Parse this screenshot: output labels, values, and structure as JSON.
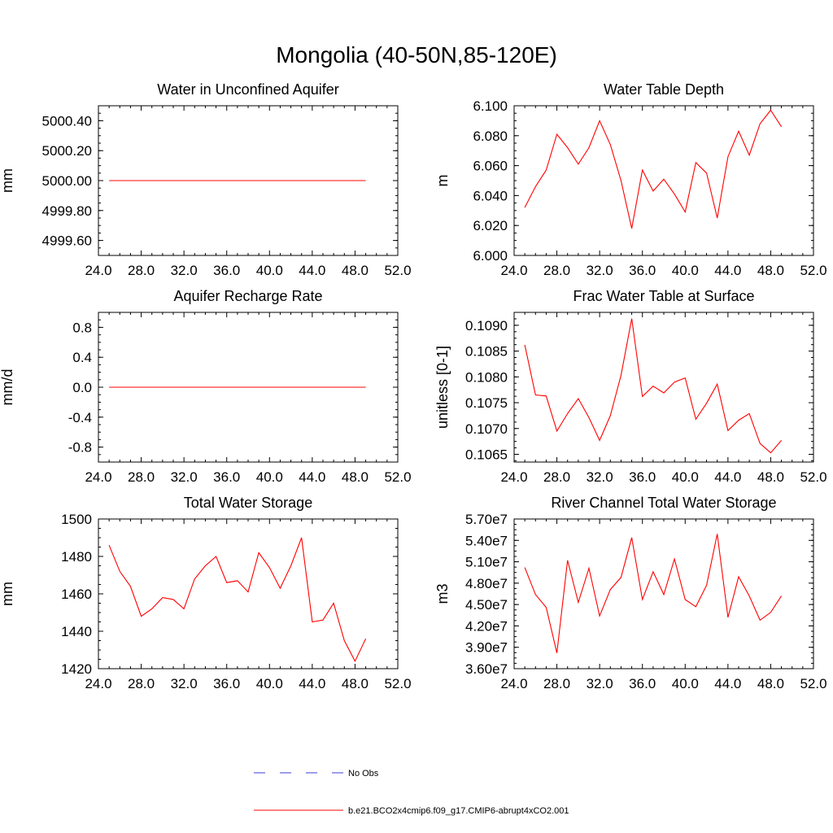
{
  "title": "Mongolia (40-50N,85-120E)",
  "legend": [
    {
      "label": "No Obs",
      "color": "#3b3bd4",
      "dash": true
    },
    {
      "label": "b.e21.BCO2x4cmip6.f09_g17.CMIP6-abrupt4xCO2.001",
      "color": "#ff0000",
      "dash": false
    }
  ],
  "colors": {
    "series": "#ff0000",
    "axis": "#000000"
  },
  "chart_data": [
    {
      "type": "line",
      "title": "Water in Unconfined Aquifer",
      "ylabel": "mm",
      "xlim": [
        24,
        52
      ],
      "ylim": [
        4999.5,
        5000.5
      ],
      "xticks": [
        "24.0",
        "28.0",
        "32.0",
        "36.0",
        "40.0",
        "44.0",
        "48.0",
        "52.0"
      ],
      "yticks": [
        4999.6,
        4999.8,
        5000.0,
        5000.2,
        5000.4
      ],
      "yticklabels": [
        "4999.60",
        "4999.80",
        "5000.00",
        "5000.20",
        "5000.40"
      ],
      "series": [
        {
          "x": [
            25,
            26,
            27,
            28,
            29,
            30,
            31,
            32,
            33,
            34,
            35,
            36,
            37,
            38,
            39,
            40,
            41,
            42,
            43,
            44,
            45,
            46,
            47,
            48,
            49
          ],
          "values": [
            5000,
            5000,
            5000,
            5000,
            5000,
            5000,
            5000,
            5000,
            5000,
            5000,
            5000,
            5000,
            5000,
            5000,
            5000,
            5000,
            5000,
            5000,
            5000,
            5000,
            5000,
            5000,
            5000,
            5000,
            5000
          ]
        }
      ]
    },
    {
      "type": "line",
      "title": "Water Table Depth",
      "ylabel": "m",
      "xlim": [
        24,
        52
      ],
      "ylim": [
        6.0,
        6.1
      ],
      "xticks": [
        "24.0",
        "28.0",
        "32.0",
        "36.0",
        "40.0",
        "44.0",
        "48.0",
        "52.0"
      ],
      "yticks": [
        6.0,
        6.02,
        6.04,
        6.06,
        6.08,
        6.1
      ],
      "yticklabels": [
        "6.000",
        "6.020",
        "6.040",
        "6.060",
        "6.080",
        "6.100"
      ],
      "series": [
        {
          "x": [
            25,
            26,
            27,
            28,
            29,
            30,
            31,
            32,
            33,
            34,
            35,
            36,
            37,
            38,
            39,
            40,
            41,
            42,
            43,
            44,
            45,
            46,
            47,
            48,
            49
          ],
          "values": [
            6.032,
            6.046,
            6.057,
            6.081,
            6.072,
            6.061,
            6.072,
            6.09,
            6.074,
            6.05,
            6.018,
            6.057,
            6.043,
            6.051,
            6.041,
            6.029,
            6.062,
            6.055,
            6.025,
            6.066,
            6.083,
            6.067,
            6.088,
            6.097,
            6.086
          ]
        }
      ]
    },
    {
      "type": "line",
      "title": "Aquifer Recharge Rate",
      "ylabel": "mm/d",
      "xlim": [
        24,
        52
      ],
      "ylim": [
        -1.0,
        1.0
      ],
      "xticks": [
        "24.0",
        "28.0",
        "32.0",
        "36.0",
        "40.0",
        "44.0",
        "48.0",
        "52.0"
      ],
      "yticks": [
        -0.8,
        -0.4,
        0.0,
        0.4,
        0.8
      ],
      "yticklabels": [
        "-0.8",
        "-0.4",
        "0.0",
        "0.4",
        "0.8"
      ],
      "series": [
        {
          "x": [
            25,
            26,
            27,
            28,
            29,
            30,
            31,
            32,
            33,
            34,
            35,
            36,
            37,
            38,
            39,
            40,
            41,
            42,
            43,
            44,
            45,
            46,
            47,
            48,
            49
          ],
          "values": [
            0,
            0,
            0,
            0,
            0,
            0,
            0,
            0,
            0,
            0,
            0,
            0,
            0,
            0,
            0,
            0,
            0,
            0,
            0,
            0,
            0,
            0,
            0,
            0,
            0
          ]
        }
      ]
    },
    {
      "type": "line",
      "title": "Frac Water Table at Surface",
      "ylabel": "unitless [0-1]",
      "xlim": [
        24,
        52
      ],
      "ylim": [
        0.10635,
        0.10925
      ],
      "xticks": [
        "24.0",
        "28.0",
        "32.0",
        "36.0",
        "40.0",
        "44.0",
        "48.0",
        "52.0"
      ],
      "yticks": [
        0.1065,
        0.107,
        0.1075,
        0.108,
        0.1085,
        0.109
      ],
      "yticklabels": [
        "0.1065",
        "0.1070",
        "0.1075",
        "0.1080",
        "0.1085",
        "0.1090"
      ],
      "series": [
        {
          "x": [
            25,
            26,
            27,
            28,
            29,
            30,
            31,
            32,
            33,
            34,
            35,
            36,
            37,
            38,
            39,
            40,
            41,
            42,
            43,
            44,
            45,
            46,
            47,
            48,
            49
          ],
          "values": [
            0.10862,
            0.10765,
            0.10763,
            0.10695,
            0.10729,
            0.10758,
            0.10721,
            0.10677,
            0.10725,
            0.10803,
            0.10913,
            0.10762,
            0.10782,
            0.10769,
            0.1079,
            0.10798,
            0.10718,
            0.10749,
            0.10786,
            0.10696,
            0.10716,
            0.10729,
            0.10671,
            0.10653,
            0.10677
          ]
        }
      ]
    },
    {
      "type": "line",
      "title": "Total Water Storage",
      "ylabel": "mm",
      "xlim": [
        24,
        52
      ],
      "ylim": [
        1420,
        1500
      ],
      "xticks": [
        "24.0",
        "28.0",
        "32.0",
        "36.0",
        "40.0",
        "44.0",
        "48.0",
        "52.0"
      ],
      "yticks": [
        1420,
        1440,
        1460,
        1480,
        1500
      ],
      "yticklabels": [
        "1420",
        "1440",
        "1460",
        "1480",
        "1500"
      ],
      "series": [
        {
          "x": [
            25,
            26,
            27,
            28,
            29,
            30,
            31,
            32,
            33,
            34,
            35,
            36,
            37,
            38,
            39,
            40,
            41,
            42,
            43,
            44,
            45,
            46,
            47,
            48,
            49
          ],
          "values": [
            1486,
            1472,
            1464,
            1448,
            1452,
            1458,
            1457,
            1452,
            1468,
            1475,
            1480,
            1466,
            1467,
            1461,
            1482,
            1474,
            1463,
            1475,
            1490,
            1445,
            1446,
            1455,
            1435,
            1424,
            1436
          ]
        }
      ]
    },
    {
      "type": "line",
      "title": "River Channel Total Water Storage",
      "ylabel": "m3",
      "xlim": [
        24,
        52
      ],
      "ylim": [
        36000000,
        57000000
      ],
      "xticks": [
        "24.0",
        "28.0",
        "32.0",
        "36.0",
        "40.0",
        "44.0",
        "48.0",
        "52.0"
      ],
      "yticks": [
        36000000,
        39000000,
        42000000,
        45000000,
        48000000,
        51000000,
        54000000,
        57000000
      ],
      "yticklabels": [
        "3.60e7",
        "3.90e7",
        "4.20e7",
        "4.50e7",
        "4.80e7",
        "5.10e7",
        "5.40e7",
        "5.70e7"
      ],
      "series": [
        {
          "x": [
            25,
            26,
            27,
            28,
            29,
            30,
            31,
            32,
            33,
            34,
            35,
            36,
            37,
            38,
            39,
            40,
            41,
            42,
            43,
            44,
            45,
            46,
            47,
            48,
            49
          ],
          "values": [
            50200000,
            46400000,
            44600000,
            38200000,
            51200000,
            45300000,
            50100000,
            43400000,
            47100000,
            48800000,
            54400000,
            45700000,
            49600000,
            46400000,
            51400000,
            45700000,
            44700000,
            47700000,
            54900000,
            43200000,
            48900000,
            46200000,
            42800000,
            43900000,
            46200000
          ]
        }
      ]
    }
  ]
}
